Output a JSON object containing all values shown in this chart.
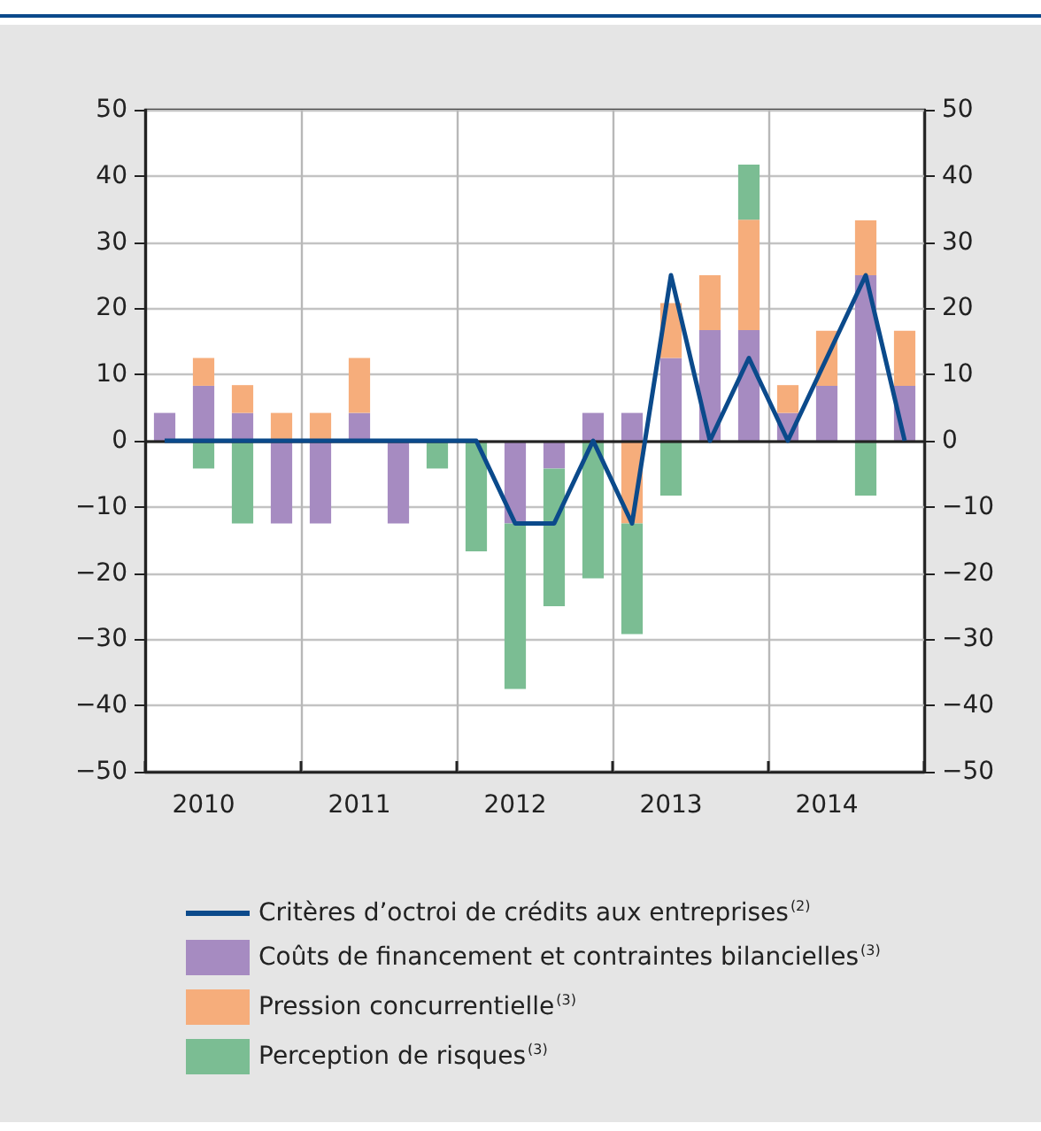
{
  "chart_data": {
    "type": "bar",
    "stacked": true,
    "categories": [
      null,
      "2010",
      null,
      null,
      null,
      "2011",
      null,
      null,
      null,
      "2012",
      null,
      null,
      null,
      "2013",
      null,
      null,
      null,
      "2014",
      null,
      null
    ],
    "series": [
      {
        "name": "Critères d’octroi de crédits aux entreprises$^{(2)}$",
        "type": "line",
        "color": "#0b4a8b",
        "values": [
          0,
          0,
          0,
          0,
          0,
          0,
          0,
          0,
          0,
          -12.5,
          -12.5,
          0,
          -12.5,
          25,
          0,
          12.5,
          0,
          12.5,
          25,
          0
        ]
      },
      {
        "name": "Coûts de financement et contraintes bilancielles$^{(3)}$",
        "color": "#a68bc1",
        "values": [
          4.2,
          8.3,
          4.2,
          -12.5,
          -12.5,
          4.2,
          -12.5,
          null,
          null,
          -12.5,
          -4.2,
          4.2,
          4.2,
          12.5,
          16.7,
          16.7,
          4.2,
          8.3,
          25,
          8.3
        ]
      },
      {
        "name": "Pression concurrentielle$^{(3)}$",
        "color": "#f6ad7b",
        "values": [
          null,
          4.2,
          4.2,
          4.2,
          4.2,
          8.3,
          null,
          null,
          null,
          null,
          null,
          null,
          -12.5,
          8.3,
          8.3,
          16.7,
          4.2,
          8.3,
          8.3,
          8.3
        ]
      },
      {
        "name": "Perception de risques$^{(3)}$",
        "color": "#7bbd93",
        "values": [
          null,
          -4.2,
          -12.5,
          null,
          null,
          null,
          null,
          -4.2,
          -16.7,
          -25,
          -20.8,
          -20.8,
          -16.7,
          -8.3,
          null,
          8.3,
          null,
          null,
          -8.3,
          null
        ]
      }
    ],
    "ylim": [
      -50,
      50
    ],
    "yticks": [
      50,
      40,
      30,
      20,
      10,
      0,
      {
        "value": -10,
        "label": "−10"
      },
      {
        "value": -20,
        "label": "−20"
      },
      {
        "value": -30,
        "label": "−30"
      },
      {
        "value": -40,
        "label": "−40"
      },
      {
        "value": -50,
        "label": "−50"
      }
    ],
    "y2lim": [
      -50,
      50
    ],
    "y2ticks": [
      50,
      40,
      30,
      20,
      10,
      0,
      {
        "value": -10,
        "label": "−10"
      },
      {
        "value": -20,
        "label": "−20"
      },
      {
        "value": -30,
        "label": "−30"
      },
      {
        "value": -40,
        "label": "−40"
      },
      {
        "value": -50,
        "label": "−50"
      }
    ],
    "grid": true,
    "legend": "bottom"
  }
}
